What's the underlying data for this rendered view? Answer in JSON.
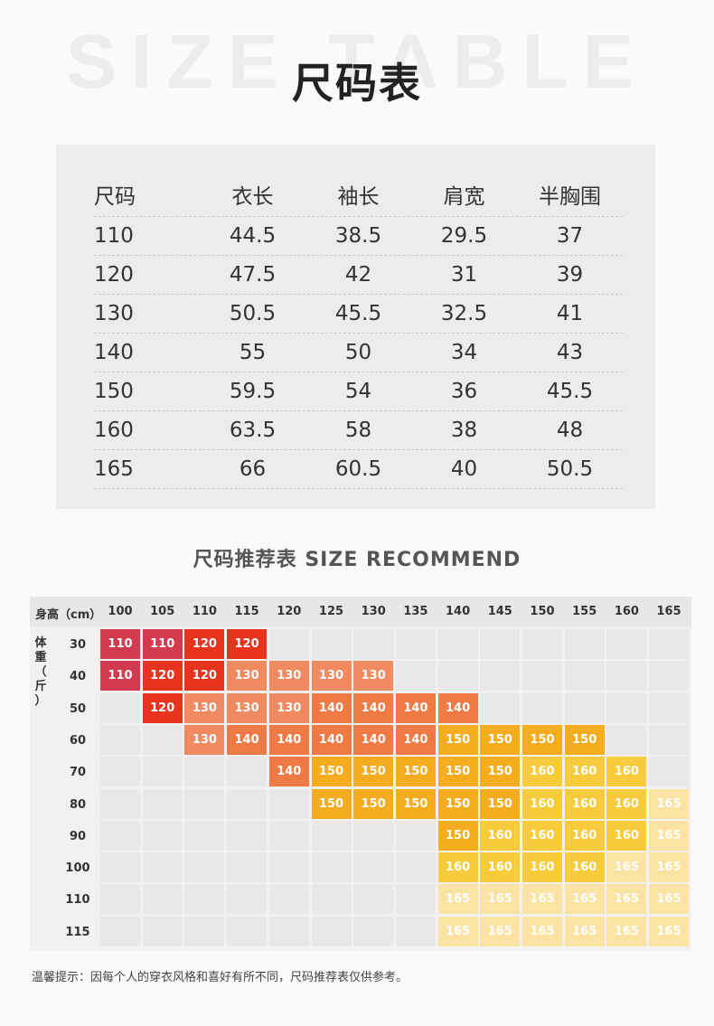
{
  "header": {
    "bg_word": "SIZE TABLE",
    "title": "尺码表"
  },
  "size_table": {
    "columns": [
      "尺码",
      "衣长",
      "袖长",
      "肩宽",
      "半胸围"
    ],
    "rows": [
      [
        "110",
        "44.5",
        "38.5",
        "29.5",
        "37"
      ],
      [
        "120",
        "47.5",
        "42",
        "31",
        "39"
      ],
      [
        "130",
        "50.5",
        "45.5",
        "32.5",
        "41"
      ],
      [
        "140",
        "55",
        "50",
        "34",
        "43"
      ],
      [
        "150",
        "59.5",
        "54",
        "36",
        "45.5"
      ],
      [
        "160",
        "63.5",
        "58",
        "38",
        "48"
      ],
      [
        "165",
        "66",
        "60.5",
        "40",
        "50.5"
      ]
    ]
  },
  "recommend": {
    "title": "尺码推荐表 SIZE RECOMMEND",
    "height_label": "身高（cm）",
    "weight_label": "体重（斤）",
    "heights": [
      "100",
      "105",
      "110",
      "115",
      "120",
      "125",
      "130",
      "135",
      "140",
      "145",
      "150",
      "155",
      "160",
      "165"
    ],
    "weights": [
      "30",
      "40",
      "50",
      "60",
      "70",
      "80",
      "90",
      "100",
      "110",
      "115"
    ],
    "grid": [
      [
        "110",
        "110",
        "120",
        "120",
        "",
        "",
        "",
        "",
        "",
        "",
        "",
        "",
        "",
        ""
      ],
      [
        "110",
        "120",
        "120",
        "130",
        "130",
        "130",
        "130",
        "",
        "",
        "",
        "",
        "",
        "",
        ""
      ],
      [
        "",
        "120",
        "130",
        "130",
        "130",
        "140",
        "140",
        "140",
        "140",
        "",
        "",
        "",
        "",
        ""
      ],
      [
        "",
        "",
        "130",
        "140",
        "140",
        "140",
        "140",
        "140",
        "150",
        "150",
        "150",
        "150",
        "",
        ""
      ],
      [
        "",
        "",
        "",
        "",
        "140",
        "150",
        "150",
        "150",
        "150",
        "150",
        "160",
        "160",
        "160",
        ""
      ],
      [
        "",
        "",
        "",
        "",
        "",
        "150",
        "150",
        "150",
        "150",
        "150",
        "160",
        "160",
        "160",
        "165"
      ],
      [
        "",
        "",
        "",
        "",
        "",
        "",
        "",
        "",
        "150",
        "160",
        "160",
        "160",
        "160",
        "165"
      ],
      [
        "",
        "",
        "",
        "",
        "",
        "",
        "",
        "",
        "160",
        "160",
        "160",
        "160",
        "165",
        "165"
      ],
      [
        "",
        "",
        "",
        "",
        "",
        "",
        "",
        "",
        "165",
        "165",
        "165",
        "165",
        "165",
        "165"
      ],
      [
        "",
        "",
        "",
        "",
        "",
        "",
        "",
        "",
        "165",
        "165",
        "165",
        "165",
        "165",
        "165"
      ]
    ],
    "size_colors": {
      "110": "#d23a4f",
      "120": "#e8341f",
      "130": "#f08a61",
      "140": "#f07a45",
      "150": "#f5ac1e",
      "160": "#f7cb3c",
      "165": "#fbe3a4"
    }
  },
  "note": "温馨提示：因每个人的穿衣风格和喜好有所不同，尺码推荐表仅供参考。"
}
